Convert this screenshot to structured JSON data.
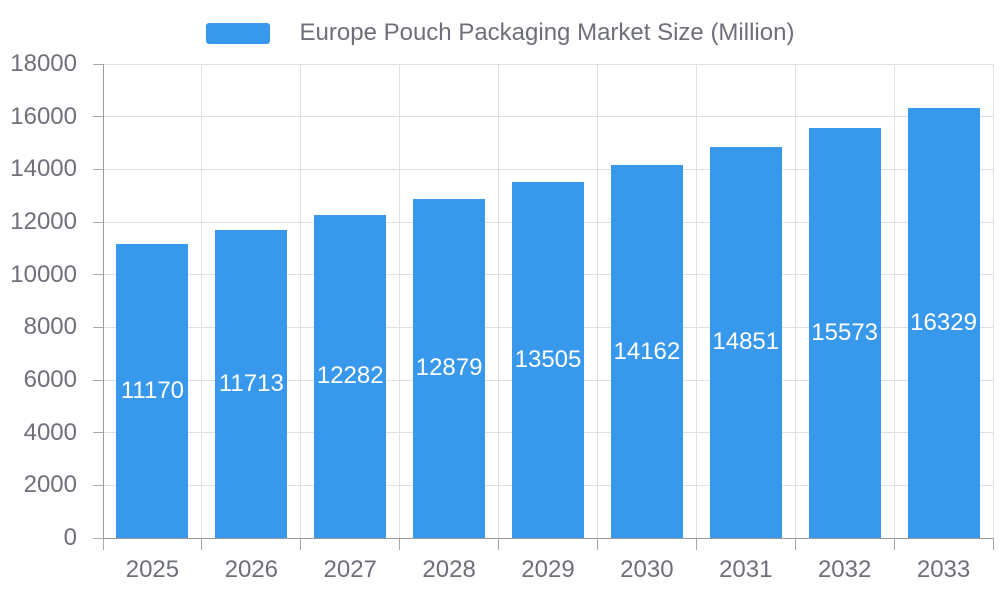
{
  "legend": {
    "swatch_color": "#3899EC"
  },
  "chart_data": {
    "type": "bar",
    "title": "Europe Pouch Packaging Market Size (Million)",
    "series": [
      {
        "name": "Europe Pouch Packaging Market Size (Million)",
        "values": [
          11170,
          11713,
          12282,
          12879,
          13505,
          14162,
          14851,
          15573,
          16329
        ]
      }
    ],
    "categories": [
      "2025",
      "2026",
      "2027",
      "2028",
      "2029",
      "2030",
      "2031",
      "2032",
      "2033"
    ],
    "values": [
      11170,
      11713,
      12282,
      12879,
      13505,
      14162,
      14851,
      15573,
      16329
    ],
    "xlabel": "",
    "ylabel": "",
    "ylim": [
      0,
      18000
    ],
    "y_ticks": [
      0,
      2000,
      4000,
      6000,
      8000,
      10000,
      12000,
      14000,
      16000,
      18000
    ],
    "grid": true,
    "legend_position": "top",
    "bar_color": "#3899EC",
    "bar_label_color": "#ffffff",
    "axis_line_color": "#999999",
    "tick_color": "#a8a8a8",
    "gridline_color": "#e0e0e0",
    "text_color": "#6e7079"
  }
}
